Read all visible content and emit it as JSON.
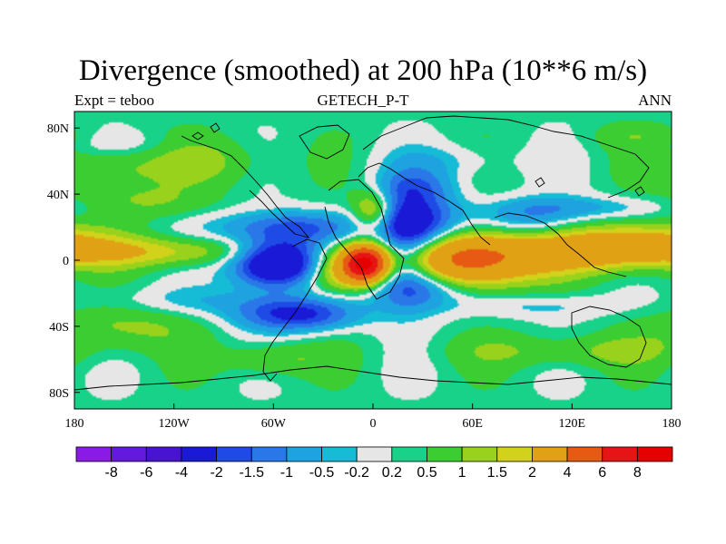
{
  "chart_data": {
    "type": "heatmap",
    "title": "Divergence (smoothed) at 200 hPa (10**6 m/s)",
    "subtitle_left": "Expt = teboo",
    "subtitle_center": "GETECH_P-T",
    "subtitle_right": "ANN",
    "x_axis": {
      "range": [
        -180,
        180
      ],
      "ticks": [
        {
          "value": -180,
          "label": "180"
        },
        {
          "value": -120,
          "label": "120W"
        },
        {
          "value": -60,
          "label": "60W"
        },
        {
          "value": 0,
          "label": "0"
        },
        {
          "value": 60,
          "label": "60E"
        },
        {
          "value": 120,
          "label": "120E"
        },
        {
          "value": 180,
          "label": "180"
        }
      ]
    },
    "y_axis": {
      "range": [
        -90,
        90
      ],
      "ticks": [
        {
          "value": 80,
          "label": "80N"
        },
        {
          "value": 40,
          "label": "40N"
        },
        {
          "value": 0,
          "label": "0"
        },
        {
          "value": -40,
          "label": "40S"
        },
        {
          "value": -80,
          "label": "80S"
        }
      ]
    },
    "colorbar": {
      "levels": [
        "-8",
        "-6",
        "-4",
        "-2",
        "-1.5",
        "-1",
        "-0.5",
        "-0.2",
        "0.2",
        "0.5",
        "1",
        "1.5",
        "2",
        "4",
        "6",
        "8"
      ],
      "colors": [
        "#8a1ae6",
        "#6419de",
        "#4814d2",
        "#1a1ad6",
        "#1e4ae6",
        "#2a78e8",
        "#1ea2e0",
        "#16bcd6",
        "#e6e6e6",
        "#18d28a",
        "#3ccd32",
        "#98d21c",
        "#d2d21a",
        "#e0a214",
        "#e65a14",
        "#e61414",
        "#e60000"
      ]
    },
    "features": [
      {
        "lon": -5,
        "lat": -2,
        "value": 7,
        "rx": 12,
        "ry": 10
      },
      {
        "lon": -20,
        "lat": -5,
        "value": 3,
        "rx": 30,
        "ry": 14
      },
      {
        "lon": 52,
        "lat": 0,
        "value": 4.5,
        "rx": 40,
        "ry": 16
      },
      {
        "lon": 120,
        "lat": 5,
        "value": 2,
        "rx": 60,
        "ry": 13
      },
      {
        "lon": 160,
        "lat": 10,
        "value": 1.8,
        "rx": 40,
        "ry": 12
      },
      {
        "lon": -125,
        "lat": 5,
        "value": 1.5,
        "rx": 60,
        "ry": 9
      },
      {
        "lon": -55,
        "lat": -2,
        "value": -5,
        "rx": 28,
        "ry": 14
      },
      {
        "lon": -50,
        "lat": 20,
        "value": -1.8,
        "rx": 45,
        "ry": 10
      },
      {
        "lon": -45,
        "lat": -33,
        "value": -2.5,
        "rx": 35,
        "ry": 10
      },
      {
        "lon": 30,
        "lat": 20,
        "value": -2.2,
        "rx": 25,
        "ry": 20
      },
      {
        "lon": 25,
        "lat": -15,
        "value": -2.2,
        "rx": 30,
        "ry": 14
      },
      {
        "lon": 20,
        "lat": 10,
        "value": -2,
        "rx": 18,
        "ry": 30
      },
      {
        "lon": 25,
        "lat": 45,
        "value": -1,
        "rx": 25,
        "ry": 10
      },
      {
        "lon": 95,
        "lat": 25,
        "value": -1.2,
        "rx": 30,
        "ry": 12
      },
      {
        "lon": 130,
        "lat": 32,
        "value": -0.8,
        "rx": 50,
        "ry": 7
      },
      {
        "lon": -100,
        "lat": -25,
        "value": -0.7,
        "rx": 60,
        "ry": 9
      },
      {
        "lon": 100,
        "lat": -28,
        "value": -0.6,
        "rx": 50,
        "ry": 7
      },
      {
        "lon": 0,
        "lat": 30,
        "value": 1.8,
        "rx": 12,
        "ry": 12
      },
      {
        "lon": -160,
        "lat": 55,
        "value": 0.9,
        "rx": 30,
        "ry": 14
      },
      {
        "lon": -100,
        "lat": 60,
        "value": 0.8,
        "rx": 40,
        "ry": 15
      },
      {
        "lon": -140,
        "lat": 35,
        "value": 0.7,
        "rx": 40,
        "ry": 10
      },
      {
        "lon": -150,
        "lat": -40,
        "value": 0.9,
        "rx": 40,
        "ry": 14
      },
      {
        "lon": 120,
        "lat": -55,
        "value": 0.8,
        "rx": 70,
        "ry": 10
      },
      {
        "lon": -60,
        "lat": -60,
        "value": 0.9,
        "rx": 30,
        "ry": 10
      },
      {
        "lon": 45,
        "lat": 60,
        "value": -0.6,
        "rx": 40,
        "ry": 10
      },
      {
        "lon": -150,
        "lat": 70,
        "value": -0.4,
        "rx": 40,
        "ry": 8
      },
      {
        "lon": 160,
        "lat": 75,
        "value": 0.5,
        "rx": 30,
        "ry": 8
      }
    ],
    "background_value": 0.3
  }
}
